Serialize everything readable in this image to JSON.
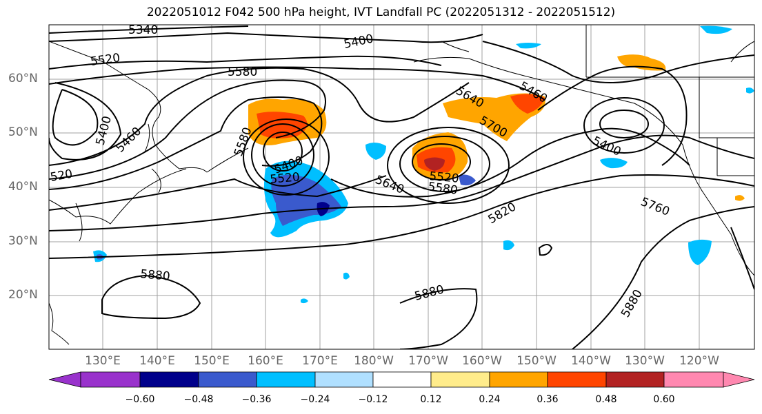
{
  "title": "2022051012 F042 500 hPa height, IVT Landfall PC (2022051312 - 2022051512)",
  "lat_labels": [
    "60°N",
    "50°N",
    "40°N",
    "30°N",
    "20°N"
  ],
  "lon_labels": [
    "130°E",
    "140°E",
    "150°E",
    "160°E",
    "170°E",
    "180°W",
    "170°W",
    "160°W",
    "150°W",
    "140°W",
    "130°W",
    "120°W"
  ],
  "contour_labels": [
    "5340",
    "5400",
    "5520",
    "5580",
    "5400",
    "5460",
    "520",
    "5580",
    "5400",
    "5520",
    "5640",
    "5580",
    "5520",
    "5700",
    "5640",
    "5460",
    "5400",
    "5760",
    "5820",
    "5880",
    "5880",
    "5880"
  ],
  "colorbar": {
    "ticks": [
      "−0.60",
      "−0.48",
      "−0.36",
      "−0.24",
      "−0.12",
      "0.12",
      "0.24",
      "0.36",
      "0.48",
      "0.60"
    ],
    "colors": [
      "#9932cc",
      "#00008b",
      "#3a5acd",
      "#00bfff",
      "#b0e0ff",
      "#ffffff",
      "#ffec8b",
      "#ffa500",
      "#ff4500",
      "#b22222",
      "#ff88b0"
    ]
  },
  "colors": {
    "contour": "#000000",
    "coast": "#000000",
    "grid": "#a0a0a0"
  }
}
